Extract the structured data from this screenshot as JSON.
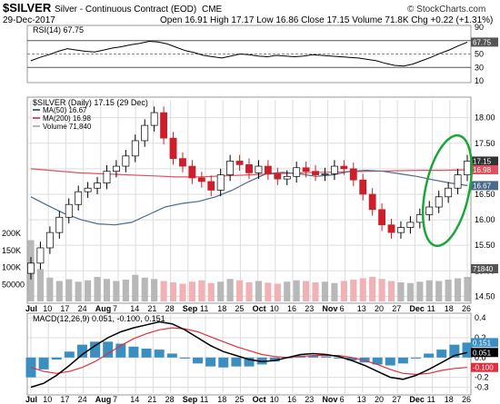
{
  "header": {
    "symbol": "$SILVER",
    "name": "Silver - Continuous Contract (EOD)",
    "exchange": "CME",
    "date": "29-Dec-2017",
    "quote": "Open 16.91  High 17.17  Low 16.86  Close 17.15  Volume 71.8K  Chg +0.22 (+1.31%)",
    "copyright": "© StockCharts.com"
  },
  "colors": {
    "frame": "#999999",
    "grid": "#dddddd",
    "up": "#ffffff",
    "down": "#cc1f2b",
    "ma50": "#4a6a8a",
    "ma200": "#e05060",
    "vol_up": "#b8b8b8",
    "vol_down": "#f0b2b5",
    "macd_line": "#000000",
    "signal_line": "#e03040",
    "histogram": "#3a8fc0",
    "highlight": "#1ea53a",
    "badge": "#555555"
  },
  "chart_data": {
    "type": "candlestick",
    "x_labels": [
      "Jul",
      "10",
      "17",
      "24",
      "Aug",
      "7",
      "14",
      "21",
      "28",
      "Sep",
      "11",
      "18",
      "25",
      "Oct",
      "10",
      "16",
      "23",
      "Nov",
      "6",
      "13",
      "20",
      "27",
      "Dec",
      "11",
      "18",
      "26"
    ],
    "rsi": {
      "label": "RSI(14) 67.75",
      "ylim": [
        10,
        90
      ],
      "ticks": [
        10,
        30,
        50,
        70,
        90
      ],
      "levels": [
        30,
        70
      ],
      "current": 67.75,
      "current_label": "67.75",
      "values": [
        40,
        45,
        49,
        54,
        58,
        56,
        54,
        53,
        56,
        59,
        61,
        64,
        66,
        69,
        68,
        65,
        60,
        55,
        52,
        48,
        46,
        44,
        47,
        50,
        49,
        47,
        46,
        48,
        47,
        46,
        47,
        49,
        48,
        47,
        46,
        45,
        44,
        42,
        40,
        36,
        33,
        32,
        35,
        40,
        45,
        51,
        56,
        62,
        67.75
      ]
    },
    "price": {
      "label": "$SILVER (Daily) 17.15 (29 Dec)",
      "ylim": [
        14.4,
        18.35
      ],
      "ticks": [
        14.5,
        15.0,
        15.5,
        16.0,
        16.5,
        17.0,
        17.5,
        18.0
      ],
      "tick_labels": [
        "14.50",
        "15.00",
        "15.50",
        "16.00",
        "16.50",
        "17.00",
        "17.50",
        "18.00"
      ],
      "close_label": "17.15",
      "ma200_label": "16.98",
      "ma50_label": "16.67",
      "legend": [
        {
          "name": "MA(50) 16.67",
          "color": "#4a6a8a"
        },
        {
          "name": "MA(200) 16.98",
          "color": "#e05060"
        },
        {
          "name": "Volume 71,840",
          "color": "#b8b8b8"
        }
      ],
      "closes": [
        15.15,
        15.45,
        15.75,
        16.05,
        16.3,
        16.55,
        16.62,
        16.72,
        16.95,
        17.05,
        17.25,
        17.55,
        17.85,
        18.1,
        17.6,
        17.2,
        17.05,
        16.82,
        16.75,
        16.58,
        16.88,
        17.15,
        17.08,
        16.92,
        17.05,
        16.9,
        16.8,
        16.85,
        17.02,
        16.95,
        16.88,
        16.9,
        17.05,
        17.0,
        16.78,
        16.5,
        16.2,
        15.9,
        15.75,
        15.85,
        15.95,
        16.1,
        16.25,
        16.45,
        16.62,
        16.88,
        17.15
      ],
      "ma50": [
        16.45,
        16.28,
        16.12,
        16.0,
        15.92,
        15.9,
        15.95,
        16.1,
        16.25,
        16.32,
        16.36,
        16.45,
        16.58,
        16.75,
        16.9,
        16.93,
        16.9,
        16.85,
        16.88,
        16.95,
        16.97,
        16.95,
        16.9,
        16.85,
        16.78,
        16.72,
        16.67
      ],
      "ma200": [
        17.0,
        16.96,
        16.92,
        16.9,
        16.88,
        16.86,
        16.84,
        16.84,
        16.86,
        16.88,
        16.9,
        16.92,
        16.93,
        16.94,
        16.95,
        16.96,
        16.97,
        16.97,
        16.98
      ],
      "volume_ticks": [
        "50000",
        "100K",
        "150K",
        "200K"
      ],
      "volume_label": "71840",
      "volumes": [
        180,
        95,
        70,
        60,
        65,
        58,
        62,
        72,
        66,
        60,
        64,
        78,
        70,
        66,
        60,
        56,
        52,
        58,
        62,
        54,
        58,
        66,
        62,
        56,
        60,
        55,
        52,
        58,
        62,
        60,
        56,
        58,
        54,
        60,
        64,
        68,
        72,
        66,
        60,
        56,
        54,
        58,
        62,
        60,
        64,
        68,
        72
      ]
    },
    "macd": {
      "label": "MACD(12,26,9) 0.051, -0.100, 0.151",
      "ylim": [
        -0.35,
        0.42
      ],
      "ticks": [
        0.4,
        0.2,
        0.0,
        -0.2,
        -0.3
      ],
      "tick_labels": [
        "0.4",
        "0.2",
        "0.0",
        "-0.2",
        "-0.3"
      ],
      "value_labels": [
        "0.151",
        "0.051",
        "-0.100"
      ],
      "macd": [
        -0.3,
        -0.26,
        -0.18,
        -0.08,
        0.03,
        0.12,
        0.2,
        0.26,
        0.3,
        0.33,
        0.36,
        0.34,
        0.28,
        0.2,
        0.12,
        0.06,
        0.02,
        -0.02,
        -0.04,
        -0.03,
        0.0,
        0.03,
        0.04,
        0.03,
        0.01,
        -0.03,
        -0.08,
        -0.14,
        -0.2,
        -0.22,
        -0.18,
        -0.12,
        -0.05,
        0.02,
        0.051
      ],
      "signal": [
        -0.1,
        -0.14,
        -0.16,
        -0.14,
        -0.1,
        -0.04,
        0.04,
        0.12,
        0.19,
        0.24,
        0.28,
        0.3,
        0.29,
        0.26,
        0.21,
        0.16,
        0.11,
        0.07,
        0.03,
        0.01,
        0.0,
        0.01,
        0.02,
        0.02,
        0.02,
        0.0,
        -0.03,
        -0.07,
        -0.12,
        -0.16,
        -0.17,
        -0.16,
        -0.13,
        -0.11,
        -0.1
      ],
      "hist_label_note": ""
    }
  }
}
